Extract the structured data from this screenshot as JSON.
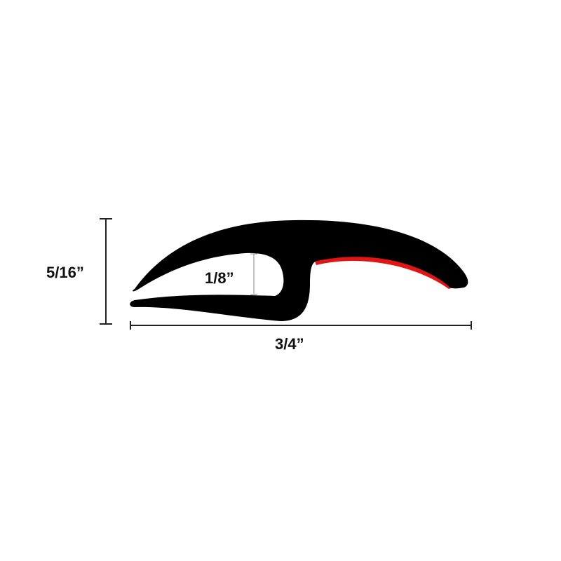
{
  "diagram": {
    "dimensions": {
      "height": "5/16”",
      "gap": "1/8”",
      "width": "3/4”"
    },
    "colors": {
      "profile": "#000000",
      "adhesive_strip": "#e01515",
      "dimension_lines": "#222222",
      "background": "#ffffff"
    }
  }
}
